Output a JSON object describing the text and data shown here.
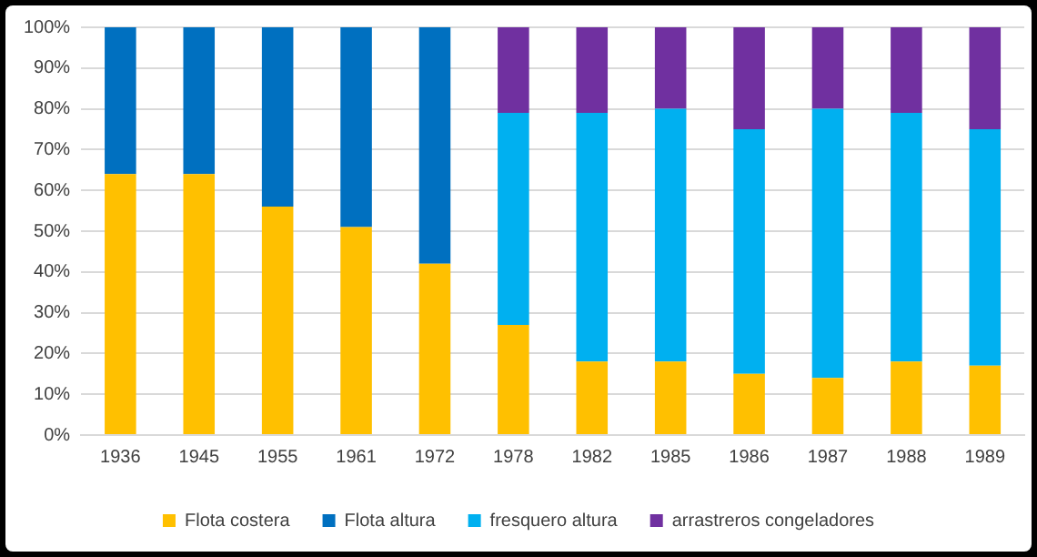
{
  "chart_data": {
    "type": "bar",
    "stacked": true,
    "categories": [
      "1936",
      "1945",
      "1955",
      "1961",
      "1972",
      "1978",
      "1982",
      "1985",
      "1986",
      "1987",
      "1988",
      "1989"
    ],
    "series": [
      {
        "name": "Flota costera",
        "color": "#ffc000",
        "values": [
          64,
          64,
          56,
          51,
          42,
          27,
          18,
          18,
          15,
          14,
          18,
          17
        ]
      },
      {
        "name": "Flota altura",
        "color": "#0070c0",
        "values": [
          36,
          36,
          44,
          49,
          58,
          null,
          null,
          null,
          null,
          null,
          null,
          null
        ]
      },
      {
        "name": "fresquero altura",
        "color": "#00b0f0",
        "values": [
          null,
          null,
          null,
          null,
          null,
          52,
          61,
          62,
          60,
          66,
          61,
          58
        ]
      },
      {
        "name": "arrastreros congeladores",
        "color": "#7030a0",
        "values": [
          null,
          null,
          null,
          null,
          null,
          21,
          21,
          20,
          25,
          20,
          21,
          25
        ]
      }
    ],
    "ylim": [
      0,
      100
    ],
    "yticks": [
      {
        "value": 0,
        "label": "0%"
      },
      {
        "value": 10,
        "label": "10%"
      },
      {
        "value": 20,
        "label": "20%"
      },
      {
        "value": 30,
        "label": "30%"
      },
      {
        "value": 40,
        "label": "40%"
      },
      {
        "value": 50,
        "label": "50%"
      },
      {
        "value": 60,
        "label": "60%"
      },
      {
        "value": 70,
        "label": "70%"
      },
      {
        "value": 80,
        "label": "80%"
      },
      {
        "value": 90,
        "label": "90%"
      },
      {
        "value": 100,
        "label": "100%"
      }
    ],
    "grid": "y",
    "legend": "bottom"
  }
}
